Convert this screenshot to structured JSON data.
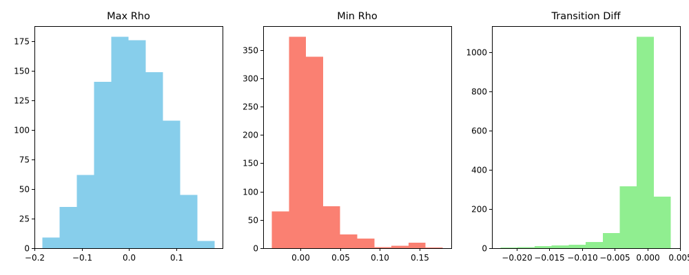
{
  "chart_data": [
    {
      "type": "bar",
      "title": "Max Rho",
      "color": "#87ceeb",
      "bin_edges": [
        -0.183,
        -0.1466,
        -0.1102,
        -0.0738,
        -0.0374,
        -0.001,
        0.0354,
        0.0718,
        0.1082,
        0.1446,
        0.181
      ],
      "values": [
        9,
        35,
        62,
        141,
        179,
        176,
        149,
        108,
        45,
        6
      ],
      "xlim": [
        -0.2,
        0.198
      ],
      "ylim": [
        0,
        188
      ],
      "xticks": [
        -0.2,
        -0.1,
        0.0,
        0.1
      ],
      "xtick_labels": [
        "−0.2",
        "−0.1",
        "0.0",
        "0.1"
      ],
      "yticks": [
        0,
        25,
        50,
        75,
        100,
        125,
        150,
        175
      ],
      "ytick_labels": [
        "0",
        "25",
        "50",
        "75",
        "100",
        "125",
        "150",
        "175"
      ]
    },
    {
      "type": "bar",
      "title": "Min Rho",
      "color": "#fa8072",
      "bin_edges": [
        -0.036,
        -0.0145,
        0.007,
        0.0285,
        0.05,
        0.0715,
        0.093,
        0.1145,
        0.136,
        0.1575,
        0.179
      ],
      "values": [
        65,
        373,
        338,
        74,
        24,
        17,
        2,
        4,
        10,
        1
      ],
      "xlim": [
        -0.0468,
        0.1898
      ],
      "ylim": [
        0,
        392
      ],
      "xticks": [
        0.0,
        0.05,
        0.1,
        0.15
      ],
      "xtick_labels": [
        "0.00",
        "0.05",
        "0.10",
        "0.15"
      ],
      "yticks": [
        0,
        50,
        100,
        150,
        200,
        250,
        300,
        350
      ],
      "ytick_labels": [
        "0",
        "50",
        "100",
        "150",
        "200",
        "250",
        "300",
        "350"
      ]
    },
    {
      "type": "bar",
      "title": "Transition Diff",
      "color": "#90ee90",
      "bin_edges": [
        -0.0225,
        -0.01989,
        -0.01728,
        -0.01467,
        -0.01206,
        -0.00945,
        -0.00684,
        -0.00423,
        -0.00162,
        0.00099,
        0.0036
      ],
      "values": [
        3,
        5,
        10,
        14,
        17,
        32,
        78,
        316,
        1080,
        263
      ],
      "xlim": [
        -0.0238,
        0.005
      ],
      "ylim": [
        0,
        1134
      ],
      "xticks": [
        -0.02,
        -0.015,
        -0.01,
        -0.005,
        0.0,
        0.005
      ],
      "xtick_labels": [
        "−0.020",
        "−0.015",
        "−0.010",
        "−0.005",
        "0.000",
        "0.005"
      ],
      "yticks": [
        0,
        200,
        400,
        600,
        800,
        1000
      ],
      "ytick_labels": [
        "0",
        "200",
        "400",
        "600",
        "800",
        "1000"
      ]
    }
  ]
}
